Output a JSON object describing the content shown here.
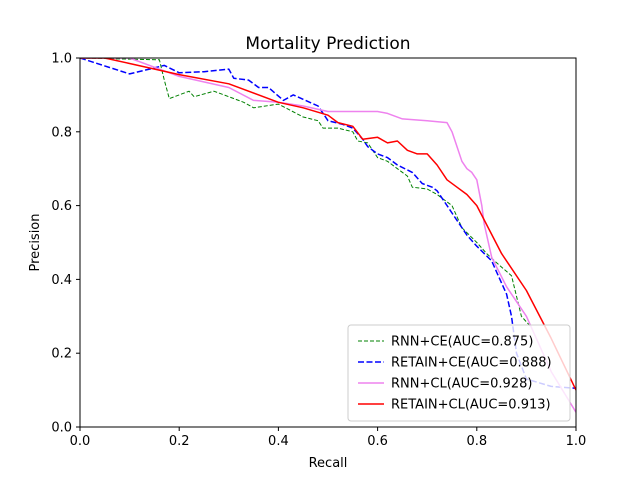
{
  "chart_data": {
    "type": "line",
    "title": "Mortality Prediction",
    "xlabel": "Recall",
    "ylabel": "Precision",
    "xlim": [
      0.0,
      1.0
    ],
    "ylim": [
      0.0,
      1.0
    ],
    "x_ticks": [
      "0.0",
      "0.2",
      "0.4",
      "0.6",
      "0.8",
      "1.0"
    ],
    "y_ticks": [
      "0.0",
      "0.2",
      "0.4",
      "0.6",
      "0.8",
      "1.0"
    ],
    "grid": false,
    "legend_position": "lower-right",
    "series": [
      {
        "name": "RNN+CE(AUC=0.875)",
        "color": "#008000",
        "style": "dashed-thin",
        "x": [
          0.0,
          0.16,
          0.17,
          0.18,
          0.22,
          0.23,
          0.27,
          0.3,
          0.33,
          0.35,
          0.4,
          0.45,
          0.48,
          0.49,
          0.52,
          0.55,
          0.56,
          0.58,
          0.6,
          0.62,
          0.64,
          0.66,
          0.67,
          0.7,
          0.72,
          0.75,
          0.77,
          0.8,
          0.82,
          0.84,
          0.87,
          0.89,
          0.91
        ],
        "y": [
          1.0,
          0.995,
          0.94,
          0.89,
          0.91,
          0.895,
          0.91,
          0.895,
          0.88,
          0.865,
          0.875,
          0.84,
          0.83,
          0.81,
          0.81,
          0.8,
          0.775,
          0.77,
          0.73,
          0.72,
          0.7,
          0.68,
          0.65,
          0.645,
          0.63,
          0.6,
          0.54,
          0.5,
          0.47,
          0.445,
          0.41,
          0.3,
          0.27
        ]
      },
      {
        "name": "RETAIN+CE(AUC=0.888)",
        "color": "#0000ff",
        "style": "dashed",
        "x": [
          0.0,
          0.1,
          0.14,
          0.17,
          0.2,
          0.25,
          0.3,
          0.31,
          0.34,
          0.36,
          0.38,
          0.41,
          0.43,
          0.48,
          0.5,
          0.53,
          0.55,
          0.57,
          0.58,
          0.6,
          0.62,
          0.64,
          0.67,
          0.69,
          0.71,
          0.72,
          0.75,
          0.78,
          0.8,
          0.83,
          0.84,
          0.86,
          0.87,
          0.88,
          0.9,
          0.95,
          1.0
        ],
        "y": [
          1.0,
          0.957,
          0.97,
          0.98,
          0.96,
          0.963,
          0.97,
          0.945,
          0.94,
          0.92,
          0.92,
          0.885,
          0.9,
          0.87,
          0.83,
          0.82,
          0.81,
          0.78,
          0.76,
          0.74,
          0.73,
          0.71,
          0.69,
          0.66,
          0.65,
          0.64,
          0.58,
          0.52,
          0.49,
          0.45,
          0.42,
          0.36,
          0.3,
          0.2,
          0.13,
          0.11,
          0.105
        ]
      },
      {
        "name": "RNN+CL(AUC=0.928)",
        "color": "#ee82ee",
        "style": "solid",
        "x": [
          0.0,
          0.1,
          0.2,
          0.3,
          0.35,
          0.4,
          0.45,
          0.5,
          0.55,
          0.6,
          0.62,
          0.65,
          0.7,
          0.74,
          0.75,
          0.76,
          0.77,
          0.78,
          0.79,
          0.8,
          0.81,
          0.815,
          0.83,
          0.86,
          0.9,
          0.95,
          1.0
        ],
        "y": [
          1.0,
          1.0,
          0.95,
          0.92,
          0.885,
          0.88,
          0.87,
          0.855,
          0.855,
          0.855,
          0.85,
          0.835,
          0.83,
          0.825,
          0.8,
          0.76,
          0.72,
          0.7,
          0.69,
          0.67,
          0.6,
          0.55,
          0.46,
          0.38,
          0.3,
          0.15,
          0.04
        ]
      },
      {
        "name": "RETAIN+CL(AUC=0.913)",
        "color": "#ff0000",
        "style": "solid",
        "x": [
          0.0,
          0.05,
          0.1,
          0.2,
          0.3,
          0.4,
          0.45,
          0.5,
          0.52,
          0.55,
          0.57,
          0.6,
          0.62,
          0.64,
          0.66,
          0.68,
          0.7,
          0.72,
          0.74,
          0.76,
          0.78,
          0.8,
          0.85,
          0.9,
          0.95,
          1.0
        ],
        "y": [
          1.0,
          1.0,
          0.985,
          0.955,
          0.93,
          0.88,
          0.865,
          0.845,
          0.825,
          0.815,
          0.78,
          0.785,
          0.77,
          0.775,
          0.75,
          0.74,
          0.74,
          0.71,
          0.67,
          0.65,
          0.63,
          0.6,
          0.47,
          0.37,
          0.24,
          0.1
        ]
      }
    ]
  }
}
